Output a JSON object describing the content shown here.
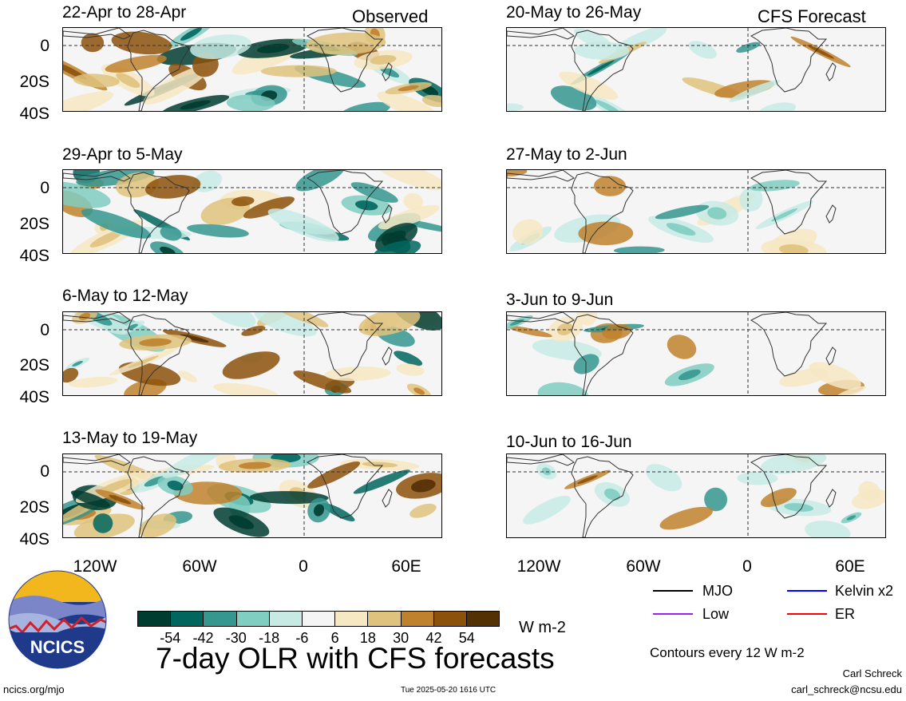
{
  "headers": {
    "left": "Observed",
    "right": "CFS Forecast"
  },
  "observed_panels": [
    {
      "period": "22-Apr to 28-Apr"
    },
    {
      "period": "29-Apr to 5-May"
    },
    {
      "period": "6-May to 12-May"
    },
    {
      "period": "13-May to 19-May"
    }
  ],
  "forecast_panels": [
    {
      "period": "20-May to 26-May"
    },
    {
      "period": "27-May to 2-Jun"
    },
    {
      "period": "3-Jun to 9-Jun"
    },
    {
      "period": "10-Jun to 16-Jun"
    }
  ],
  "y_ticks": [
    "0",
    "20S",
    "40S"
  ],
  "x_ticks": [
    "120W",
    "60W",
    "0",
    "60E"
  ],
  "colorbar": {
    "labels": [
      "-54",
      "-42",
      "-30",
      "-18",
      "-6",
      "6",
      "18",
      "30",
      "42",
      "54"
    ],
    "colors": [
      "#003c30",
      "#01665e",
      "#35978f",
      "#80cdc1",
      "#c7eae5",
      "#f5f5f5",
      "#f6e8c3",
      "#dfc27d",
      "#bf812d",
      "#8c510a",
      "#543005"
    ],
    "units": "W m-2"
  },
  "legend": {
    "items": [
      {
        "label": "MJO",
        "color": "#000000"
      },
      {
        "label": "Kelvin x2",
        "color": "#0000ff"
      },
      {
        "label": "Low",
        "color": "#a020f0"
      },
      {
        "label": "ER",
        "color": "#ff0000"
      }
    ],
    "contours_note": "Contours every 12 W m-2"
  },
  "main_title": "7-day OLR with CFS forecasts",
  "logo_text": "NCICS",
  "footer": {
    "website": "ncics.org/mjo",
    "timestamp": "Tue 2025-05-20 1616 UTC",
    "author": "Carl Schreck",
    "email": "carl_schreck@ncsu.edu"
  }
}
